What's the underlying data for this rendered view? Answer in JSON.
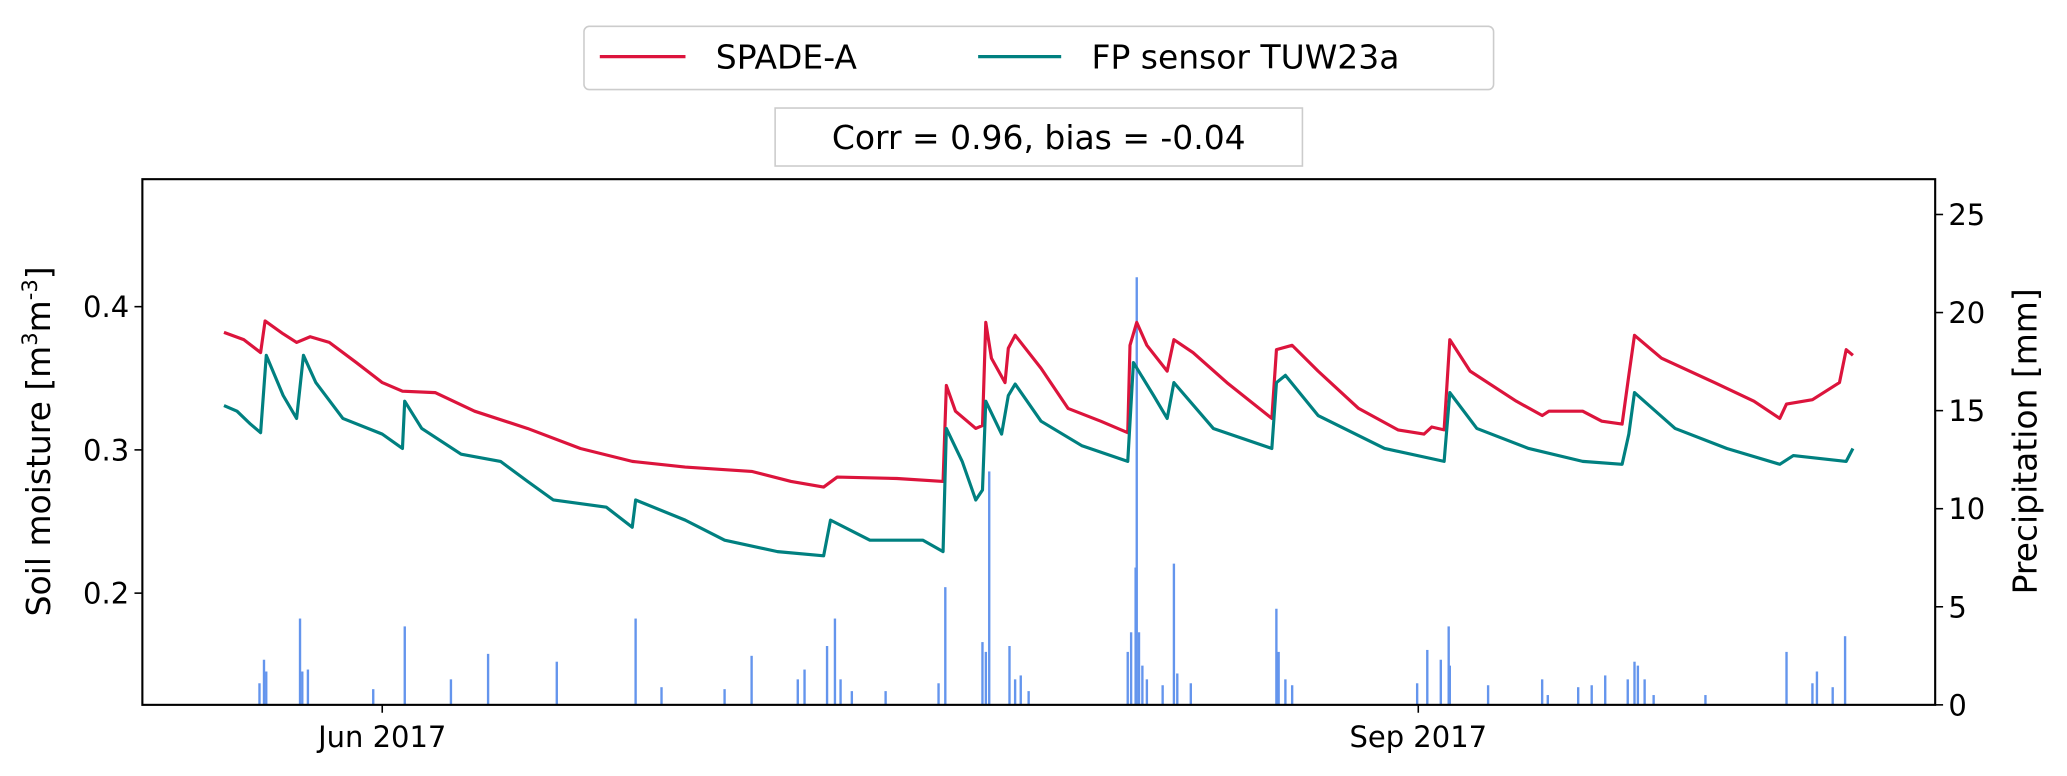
{
  "chart_data": {
    "type": "line",
    "legend": {
      "placement": "top-center",
      "entries": [
        {
          "label": "SPADE-A",
          "color": "#DC143C"
        },
        {
          "label": "FP sensor TUW23a",
          "color": "#008080"
        }
      ]
    },
    "annotation": "Corr = 0.96, bias = -0.04",
    "x_unit": "days since 2017-06-01",
    "xlim": [
      -21.3,
      137.9
    ],
    "x_ticks": [
      {
        "value": 0,
        "label": "Jun 2017"
      },
      {
        "value": 92,
        "label": "Sep 2017"
      }
    ],
    "y_left": {
      "label": "Soil moisture [m",
      "label_sup1": "3",
      "label_mid": "m",
      "label_sup2": "-3",
      "label_end": "]",
      "ylim": [
        0.122,
        0.489
      ],
      "ticks": [
        0.2,
        0.3,
        0.4
      ],
      "tick_labels": [
        "0.2",
        "0.3",
        "0.4"
      ]
    },
    "y_right": {
      "label": "Precipitation [mm]",
      "ylim": [
        0,
        26.8
      ],
      "ticks": [
        0,
        5,
        10,
        15,
        20,
        25
      ],
      "tick_labels": [
        "0",
        "5",
        "10",
        "15",
        "20",
        "25"
      ]
    },
    "grid": false,
    "series": [
      {
        "name": "SPADE-A",
        "axis": "left",
        "color": "#DC143C",
        "points": [
          [
            -14.05,
            0.382
          ],
          [
            -12.3,
            0.377
          ],
          [
            -10.8,
            0.368
          ],
          [
            -10.4,
            0.39
          ],
          [
            -8.8,
            0.381
          ],
          [
            -7.6,
            0.375
          ],
          [
            -6.4,
            0.379
          ],
          [
            -4.7,
            0.375
          ],
          [
            -2.3,
            0.361
          ],
          [
            0,
            0.347
          ],
          [
            1.8,
            0.341
          ],
          [
            4.7,
            0.34
          ],
          [
            8.2,
            0.327
          ],
          [
            12.9,
            0.315
          ],
          [
            17.6,
            0.301
          ],
          [
            22.2,
            0.292
          ],
          [
            26.9,
            0.288
          ],
          [
            32.8,
            0.285
          ],
          [
            36.3,
            0.278
          ],
          [
            39.2,
            0.274
          ],
          [
            40.4,
            0.281
          ],
          [
            45.7,
            0.28
          ],
          [
            49.8,
            0.278
          ],
          [
            50.1,
            0.345
          ],
          [
            50.9,
            0.327
          ],
          [
            52.7,
            0.315
          ],
          [
            53.3,
            0.317
          ],
          [
            53.6,
            0.389
          ],
          [
            54.1,
            0.364
          ],
          [
            55.3,
            0.347
          ],
          [
            55.6,
            0.371
          ],
          [
            56.2,
            0.38
          ],
          [
            58.5,
            0.357
          ],
          [
            60.9,
            0.329
          ],
          [
            63.8,
            0.32
          ],
          [
            66.2,
            0.312
          ],
          [
            66.4,
            0.373
          ],
          [
            67.0,
            0.389
          ],
          [
            67.9,
            0.373
          ],
          [
            69.7,
            0.355
          ],
          [
            70.3,
            0.377
          ],
          [
            72.0,
            0.368
          ],
          [
            75.0,
            0.347
          ],
          [
            79.0,
            0.322
          ],
          [
            79.4,
            0.37
          ],
          [
            80.8,
            0.373
          ],
          [
            83.1,
            0.355
          ],
          [
            86.7,
            0.329
          ],
          [
            90.2,
            0.314
          ],
          [
            92.5,
            0.311
          ],
          [
            93.2,
            0.316
          ],
          [
            94.3,
            0.314
          ],
          [
            94.8,
            0.377
          ],
          [
            96.6,
            0.355
          ],
          [
            100.7,
            0.334
          ],
          [
            103.0,
            0.324
          ],
          [
            103.6,
            0.327
          ],
          [
            106.6,
            0.327
          ],
          [
            108.3,
            0.32
          ],
          [
            110.1,
            0.318
          ],
          [
            110.7,
            0.352
          ],
          [
            111.2,
            0.38
          ],
          [
            113.6,
            0.364
          ],
          [
            118.3,
            0.347
          ],
          [
            121.8,
            0.334
          ],
          [
            124.1,
            0.322
          ],
          [
            124.7,
            0.332
          ],
          [
            127.0,
            0.335
          ],
          [
            129.4,
            0.347
          ],
          [
            130.0,
            0.37
          ],
          [
            130.6,
            0.366
          ]
        ]
      },
      {
        "name": "FP sensor TUW23a",
        "axis": "left",
        "color": "#008080",
        "points": [
          [
            -14.05,
            0.331
          ],
          [
            -12.9,
            0.327
          ],
          [
            -11.7,
            0.318
          ],
          [
            -10.8,
            0.312
          ],
          [
            -10.3,
            0.366
          ],
          [
            -8.8,
            0.338
          ],
          [
            -7.6,
            0.322
          ],
          [
            -7.0,
            0.366
          ],
          [
            -5.9,
            0.347
          ],
          [
            -3.5,
            0.322
          ],
          [
            0,
            0.311
          ],
          [
            1.8,
            0.301
          ],
          [
            2.0,
            0.334
          ],
          [
            3.5,
            0.315
          ],
          [
            7.0,
            0.297
          ],
          [
            10.5,
            0.292
          ],
          [
            12.9,
            0.278
          ],
          [
            15.2,
            0.265
          ],
          [
            19.9,
            0.26
          ],
          [
            22.2,
            0.246
          ],
          [
            22.5,
            0.265
          ],
          [
            26.9,
            0.251
          ],
          [
            30.4,
            0.237
          ],
          [
            35.1,
            0.229
          ],
          [
            39.2,
            0.226
          ],
          [
            39.8,
            0.251
          ],
          [
            43.3,
            0.237
          ],
          [
            48.0,
            0.237
          ],
          [
            49.8,
            0.229
          ],
          [
            50.1,
            0.315
          ],
          [
            51.5,
            0.292
          ],
          [
            52.7,
            0.265
          ],
          [
            53.3,
            0.272
          ],
          [
            53.6,
            0.334
          ],
          [
            55.0,
            0.311
          ],
          [
            55.6,
            0.338
          ],
          [
            56.2,
            0.346
          ],
          [
            58.5,
            0.32
          ],
          [
            62.1,
            0.303
          ],
          [
            66.2,
            0.292
          ],
          [
            66.7,
            0.361
          ],
          [
            68.5,
            0.338
          ],
          [
            69.7,
            0.322
          ],
          [
            70.3,
            0.347
          ],
          [
            73.8,
            0.315
          ],
          [
            79.0,
            0.301
          ],
          [
            79.4,
            0.347
          ],
          [
            80.2,
            0.352
          ],
          [
            83.1,
            0.324
          ],
          [
            89.0,
            0.301
          ],
          [
            94.3,
            0.292
          ],
          [
            94.8,
            0.34
          ],
          [
            97.2,
            0.315
          ],
          [
            101.8,
            0.301
          ],
          [
            106.6,
            0.292
          ],
          [
            110.1,
            0.29
          ],
          [
            110.7,
            0.311
          ],
          [
            111.2,
            0.34
          ],
          [
            114.8,
            0.315
          ],
          [
            119.4,
            0.301
          ],
          [
            124.1,
            0.29
          ],
          [
            125.3,
            0.296
          ],
          [
            130.0,
            0.292
          ],
          [
            130.6,
            0.301
          ]
        ]
      },
      {
        "name": "Precipitation",
        "axis": "right",
        "type": "bar",
        "color": "#6495ED",
        "points": [
          [
            -10.9,
            1.1
          ],
          [
            -10.5,
            2.3
          ],
          [
            -10.3,
            1.7
          ],
          [
            -7.3,
            4.4
          ],
          [
            -7.1,
            1.7
          ],
          [
            -6.6,
            1.8
          ],
          [
            -0.8,
            0.8
          ],
          [
            2.0,
            4.0
          ],
          [
            6.1,
            1.3
          ],
          [
            9.4,
            2.6
          ],
          [
            15.5,
            2.2
          ],
          [
            22.5,
            4.4
          ],
          [
            24.8,
            0.9
          ],
          [
            30.4,
            0.8
          ],
          [
            32.8,
            2.5
          ],
          [
            36.9,
            1.3
          ],
          [
            37.5,
            1.8
          ],
          [
            39.5,
            3.0
          ],
          [
            40.2,
            4.4
          ],
          [
            40.7,
            1.3
          ],
          [
            41.7,
            0.7
          ],
          [
            44.7,
            0.7
          ],
          [
            49.4,
            1.1
          ],
          [
            50.0,
            6.0
          ],
          [
            53.3,
            3.2
          ],
          [
            53.6,
            2.7
          ],
          [
            53.9,
            11.9
          ],
          [
            55.7,
            3.0
          ],
          [
            56.2,
            1.3
          ],
          [
            56.7,
            1.5
          ],
          [
            57.4,
            0.7
          ],
          [
            66.2,
            2.7
          ],
          [
            66.5,
            3.7
          ],
          [
            66.9,
            7.0
          ],
          [
            67.0,
            21.8
          ],
          [
            67.2,
            3.7
          ],
          [
            67.5,
            2.0
          ],
          [
            67.9,
            1.3
          ],
          [
            69.3,
            1.0
          ],
          [
            70.3,
            7.2
          ],
          [
            70.6,
            1.6
          ],
          [
            71.8,
            1.1
          ],
          [
            79.4,
            4.9
          ],
          [
            79.6,
            2.7
          ],
          [
            80.2,
            1.3
          ],
          [
            80.8,
            1.0
          ],
          [
            91.9,
            1.1
          ],
          [
            92.8,
            2.8
          ],
          [
            94.0,
            2.3
          ],
          [
            94.7,
            4.0
          ],
          [
            94.8,
            2.0
          ],
          [
            98.2,
            1.0
          ],
          [
            103.0,
            1.3
          ],
          [
            103.5,
            0.5
          ],
          [
            106.2,
            0.9
          ],
          [
            107.4,
            1.0
          ],
          [
            108.6,
            1.5
          ],
          [
            110.6,
            1.3
          ],
          [
            111.2,
            2.2
          ],
          [
            111.5,
            2.0
          ],
          [
            112.1,
            1.3
          ],
          [
            112.9,
            0.5
          ],
          [
            117.5,
            0.5
          ],
          [
            124.7,
            2.7
          ],
          [
            127.0,
            1.1
          ],
          [
            127.4,
            1.7
          ],
          [
            128.8,
            0.9
          ],
          [
            129.9,
            3.5
          ]
        ]
      }
    ]
  }
}
